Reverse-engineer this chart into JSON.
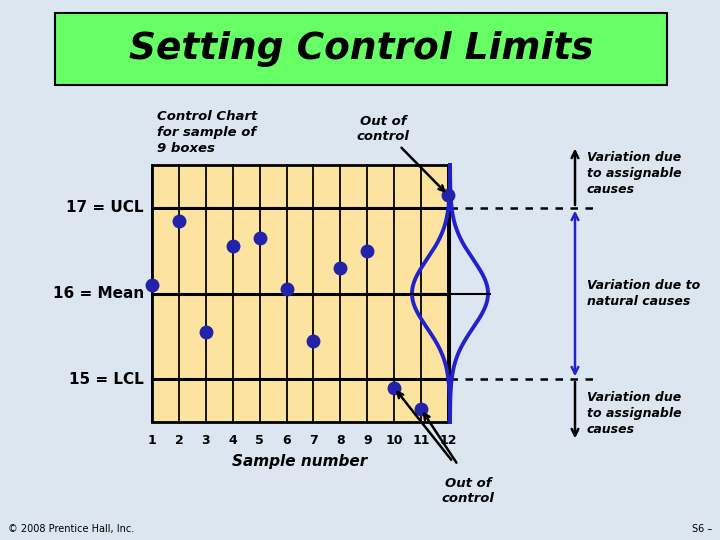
{
  "title": "Setting Control Limits",
  "title_bg": "#66ff66",
  "bg_color": "#dce6f1",
  "chart_bg": "#fce4a0",
  "ucl": 17,
  "mean": 16,
  "lcl": 15,
  "sample_numbers": [
    1,
    2,
    3,
    4,
    5,
    6,
    7,
    8,
    9,
    10,
    11,
    12
  ],
  "dot_values": [
    16.1,
    16.85,
    15.55,
    16.55,
    16.65,
    16.05,
    15.45,
    16.3,
    16.5,
    14.9,
    14.65,
    17.15
  ],
  "dot_color": "#2222aa",
  "ucl_label": "17 = UCL",
  "mean_label": "16 = Mean",
  "lcl_label": "15 = LCL",
  "xlabel": "Sample number",
  "control_chart_label": "Control Chart\nfor sample of\n9 boxes",
  "out_of_control_top_label": "Out of\ncontrol",
  "out_of_control_bottom_label": "Out of\ncontrol",
  "var_assignable_top": "Variation due\nto assignable\ncauses",
  "var_natural": "Variation due to\nnatural causes",
  "var_assignable_bottom": "Variation due\nto assignable\ncauses",
  "footer_left": "© 2008 Prentice Hall, Inc.",
  "footer_right": "S6 –"
}
